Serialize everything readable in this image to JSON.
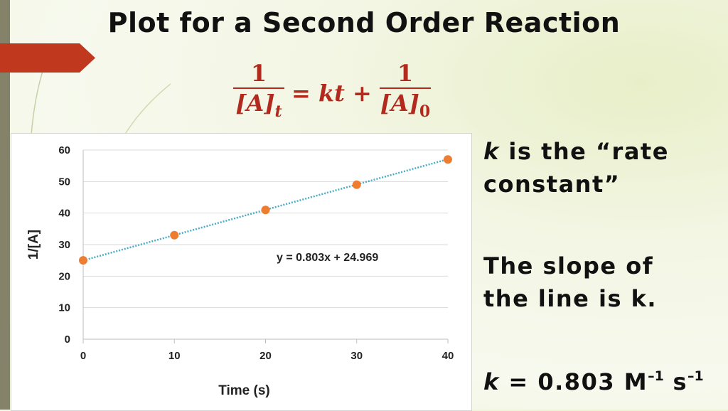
{
  "slide": {
    "title": "Plot for a Second Order Reaction",
    "equation": {
      "lhs_num": "1",
      "lhs_den_main": "[A]",
      "lhs_den_sub": "t",
      "middle": "= kt +",
      "rhs_num": "1",
      "rhs_den_main": "[A]",
      "rhs_den_sub": "0"
    },
    "note1": {
      "k": "k",
      "line1_rest": " is the “rate",
      "line2": "constant”"
    },
    "note2": {
      "line1": "The slope of",
      "line2": "the line is k."
    },
    "note3": {
      "k": "k",
      "value": " = 0.803 M",
      "exp1": "–1",
      "s": " s",
      "exp2": "–1"
    },
    "colors": {
      "accent": "#b22a1d",
      "marker": "#ed7d31",
      "trendline": "#4bacc6",
      "left_bar": "#85826a"
    }
  },
  "chart_data": {
    "type": "scatter",
    "xlabel": "Time (s)",
    "ylabel": "1/[A]",
    "xlim": [
      0,
      40
    ],
    "ylim": [
      0,
      60
    ],
    "xticks": [
      0,
      10,
      20,
      30,
      40
    ],
    "yticks": [
      0,
      10,
      20,
      30,
      40,
      50,
      60
    ],
    "grid": "horizontal",
    "series": [
      {
        "x": [
          0,
          10,
          20,
          30,
          40
        ],
        "y": [
          25,
          33,
          41,
          49,
          57
        ]
      }
    ],
    "trendline": {
      "slope": 0.803,
      "intercept": 24.969,
      "label": "y = 0.803x + 24.969"
    }
  }
}
